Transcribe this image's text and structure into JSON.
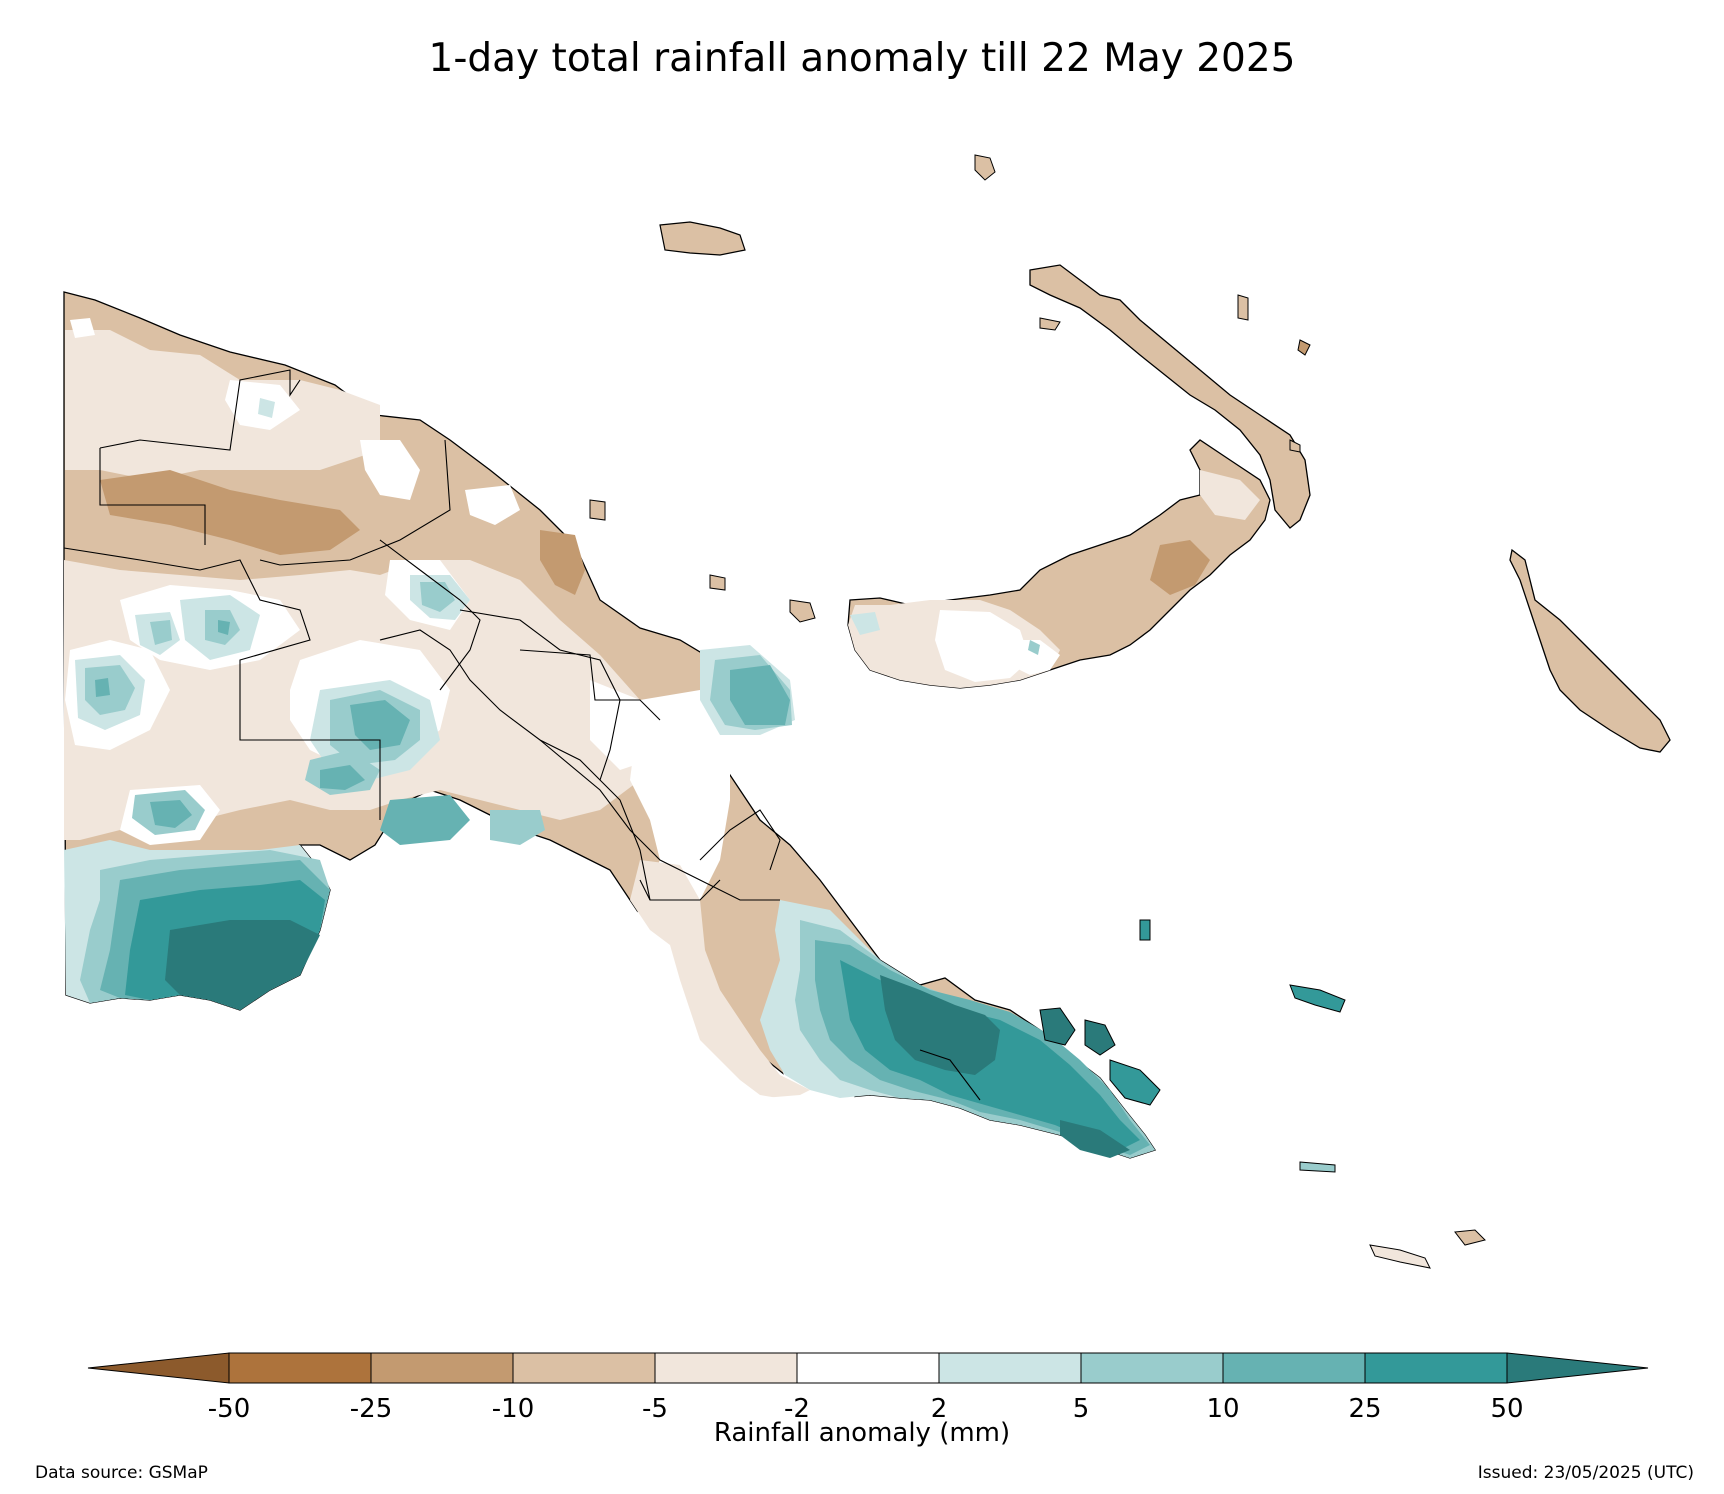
{
  "title": "1-day total rainfall anomaly till 22 May 2025",
  "colorbar": {
    "label": "Rainfall anomaly (mm)",
    "ticks": [
      "-50",
      "-25",
      "-10",
      "-5",
      "-2",
      "2",
      "5",
      "10",
      "25",
      "50"
    ],
    "extend": "both",
    "colors": {
      "below_-50": "#8c5a2c",
      "-50_-25": "#ad733c",
      "-25_-10": "#c39a70",
      "-10_-5": "#dbc0a4",
      "-5_-2": "#f1e6dc",
      "-2_2": "#ffffff",
      "2_5": "#cce5e5",
      "5_10": "#99cccc",
      "10_25": "#66b2b2",
      "25_50": "#339999",
      "above_50": "#2a7a7a"
    }
  },
  "source": "Data source: GSMaP",
  "issued": "Issued: 23/05/2025 (UTC)"
}
